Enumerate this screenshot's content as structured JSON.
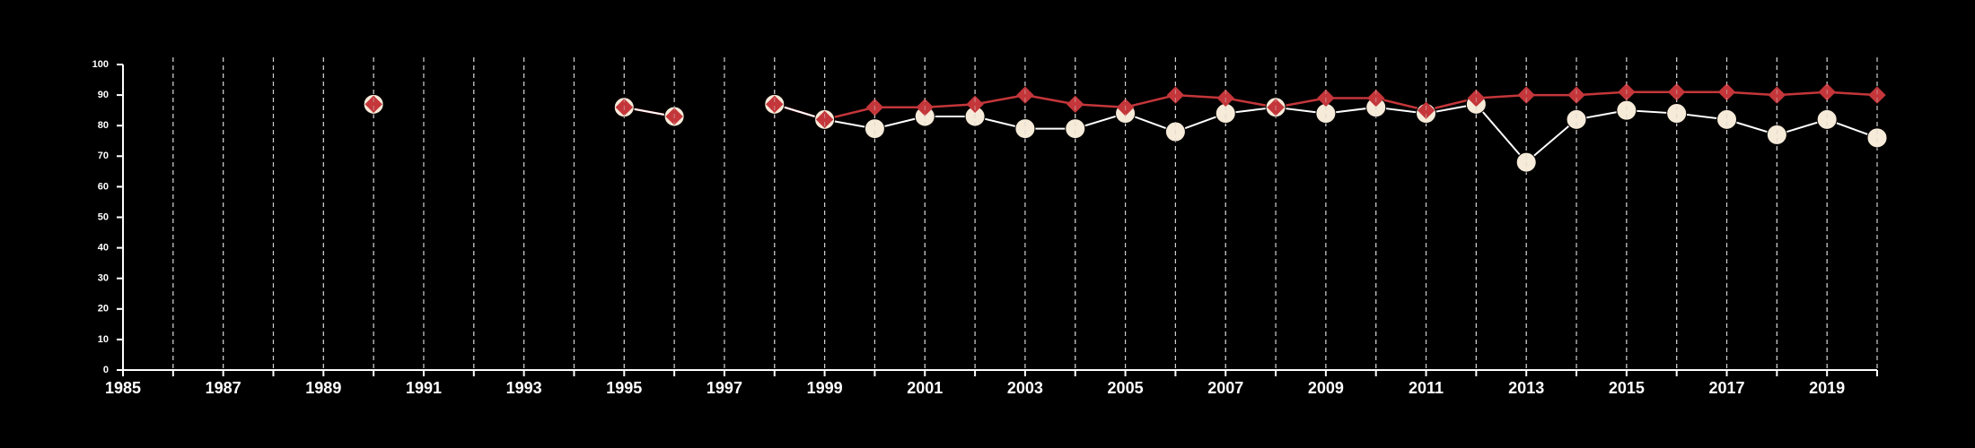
{
  "chart_data": {
    "type": "line",
    "title": "",
    "xlabel": "",
    "ylabel": "",
    "xlim": [
      1985,
      2020
    ],
    "ylim": [
      0,
      100
    ],
    "x_ticks": [
      1985,
      1987,
      1989,
      1991,
      1993,
      1995,
      1997,
      1999,
      2001,
      2003,
      2005,
      2007,
      2009,
      2011,
      2013,
      2015,
      2017,
      2019
    ],
    "y_ticks": [
      0,
      10,
      20,
      30,
      40,
      50,
      60,
      70,
      80,
      90,
      100
    ],
    "grid": "vertical dashed lines at every year",
    "colors": {
      "background": "#000000",
      "axis": "#ffffff",
      "grid": "#cfcfcf",
      "red_series": "#c4363a",
      "cream_series": "#f6ead8",
      "cream_line": "#ffffff"
    },
    "series": [
      {
        "marker": "diamond",
        "color": "#c4363a",
        "points": [
          [
            1990,
            87
          ],
          [
            1995,
            86
          ],
          [
            1996,
            83
          ],
          [
            1998,
            87
          ],
          [
            1999,
            82
          ],
          [
            2000,
            86
          ],
          [
            2001,
            86
          ],
          [
            2002,
            87
          ],
          [
            2003,
            90
          ],
          [
            2004,
            87
          ],
          [
            2005,
            86
          ],
          [
            2006,
            90
          ],
          [
            2007,
            89
          ],
          [
            2008,
            86
          ],
          [
            2009,
            89
          ],
          [
            2010,
            89
          ],
          [
            2011,
            85
          ],
          [
            2012,
            89
          ],
          [
            2013,
            90
          ],
          [
            2014,
            90
          ],
          [
            2015,
            91
          ],
          [
            2016,
            91
          ],
          [
            2017,
            91
          ],
          [
            2018,
            90
          ],
          [
            2019,
            91
          ],
          [
            2020,
            90
          ]
        ]
      },
      {
        "marker": "circle",
        "color": "#f6ead8",
        "points": [
          [
            1990,
            87
          ],
          [
            1995,
            86
          ],
          [
            1996,
            83
          ],
          [
            1998,
            87
          ],
          [
            1999,
            82
          ],
          [
            2000,
            79
          ],
          [
            2001,
            83
          ],
          [
            2002,
            83
          ],
          [
            2003,
            79
          ],
          [
            2004,
            79
          ],
          [
            2005,
            84
          ],
          [
            2006,
            78
          ],
          [
            2007,
            84
          ],
          [
            2008,
            86
          ],
          [
            2009,
            84
          ],
          [
            2010,
            86
          ],
          [
            2011,
            84
          ],
          [
            2012,
            87
          ],
          [
            2013,
            68
          ],
          [
            2014,
            82
          ],
          [
            2015,
            85
          ],
          [
            2016,
            84
          ],
          [
            2017,
            82
          ],
          [
            2018,
            77
          ],
          [
            2019,
            82
          ],
          [
            2020,
            76
          ]
        ]
      }
    ]
  }
}
